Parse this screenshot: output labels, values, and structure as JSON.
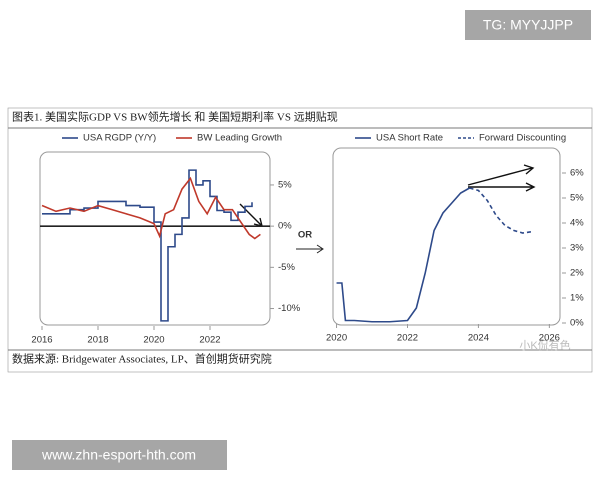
{
  "header": {
    "title": "图表1. 美国实际GDP VS BW领先增长 和 美国短期利率 VS 远期贴现"
  },
  "source": "数据来源:  Bridgewater Associates, LP、首创期货研究院",
  "connector_label": "OR",
  "watermarks": {
    "top": "TG: MYYJJPP",
    "bottom": "www.zhn-esport-hth.com",
    "logo": "小K侃有色"
  },
  "chart_data": [
    {
      "type": "line",
      "xlim": [
        2016,
        2024
      ],
      "xticks": [
        2016,
        2018,
        2020,
        2022
      ],
      "ylim": [
        -12,
        9
      ],
      "yticks": [
        {
          "value": 5,
          "label": "5%"
        },
        {
          "value": 0,
          "label": "0%"
        },
        {
          "value": -5,
          "label": "-5%"
        },
        {
          "value": -10,
          "label": "-10%"
        }
      ],
      "zero_line": true,
      "series": [
        {
          "name": "USA RGDP (Y/Y)",
          "color": "#2e4a8a",
          "step": true,
          "x": [
            2016,
            2016.5,
            2017,
            2017.5,
            2018,
            2018.5,
            2019,
            2019.5,
            2020,
            2020.25,
            2020.5,
            2020.75,
            2021,
            2021.25,
            2021.5,
            2021.75,
            2022,
            2022.25,
            2022.5,
            2022.75,
            2023,
            2023.25,
            2023.5
          ],
          "values": [
            1.5,
            1.5,
            2.0,
            2.2,
            3.0,
            3.0,
            2.5,
            2.3,
            0.5,
            -11.5,
            -2.5,
            -1.0,
            1.0,
            6.8,
            5.0,
            5.5,
            3.6,
            1.9,
            1.7,
            0.7,
            1.7,
            2.4,
            2.9
          ]
        },
        {
          "name": "BW Leading Growth",
          "color": "#c0392b",
          "x": [
            2016,
            2016.5,
            2017,
            2017.5,
            2018,
            2018.5,
            2019,
            2019.5,
            2020,
            2020.2,
            2020.4,
            2020.7,
            2021,
            2021.3,
            2021.6,
            2021.9,
            2022.2,
            2022.5,
            2022.8,
            2023.1,
            2023.4,
            2023.6,
            2023.8
          ],
          "values": [
            2.5,
            1.8,
            2.2,
            1.8,
            2.5,
            2.0,
            1.5,
            1.0,
            0.3,
            -1.2,
            1.5,
            2.0,
            4.5,
            5.8,
            3.0,
            1.5,
            3.5,
            2.0,
            2.0,
            0.5,
            -1.0,
            -1.5,
            -1.0
          ]
        }
      ]
    },
    {
      "type": "line",
      "xlim": [
        2019.9,
        2026.3
      ],
      "xticks": [
        2020,
        2022,
        2024,
        2026
      ],
      "ylim": [
        0,
        7
      ],
      "yticks": [
        {
          "value": 0,
          "label": "0%"
        },
        {
          "value": 1,
          "label": "1%"
        },
        {
          "value": 2,
          "label": "2%"
        },
        {
          "value": 3,
          "label": "3%"
        },
        {
          "value": 4,
          "label": "4%"
        },
        {
          "value": 5,
          "label": "5%"
        },
        {
          "value": 6,
          "label": "6%"
        }
      ],
      "series": [
        {
          "name": "USA Short Rate",
          "color": "#2e4a8a",
          "x": [
            2020,
            2020.15,
            2020.25,
            2020.5,
            2021,
            2021.5,
            2022,
            2022.25,
            2022.5,
            2022.75,
            2023,
            2023.25,
            2023.5,
            2023.75
          ],
          "values": [
            1.6,
            1.6,
            0.1,
            0.1,
            0.05,
            0.05,
            0.1,
            0.6,
            2.0,
            3.7,
            4.4,
            4.8,
            5.2,
            5.4
          ]
        },
        {
          "name": "Forward Discounting",
          "color": "#2e4a8a",
          "dashed": true,
          "x": [
            2023.75,
            2024,
            2024.25,
            2024.5,
            2024.75,
            2025,
            2025.25,
            2025.5
          ],
          "values": [
            5.4,
            5.3,
            4.9,
            4.3,
            3.9,
            3.7,
            3.6,
            3.65
          ]
        }
      ]
    }
  ]
}
